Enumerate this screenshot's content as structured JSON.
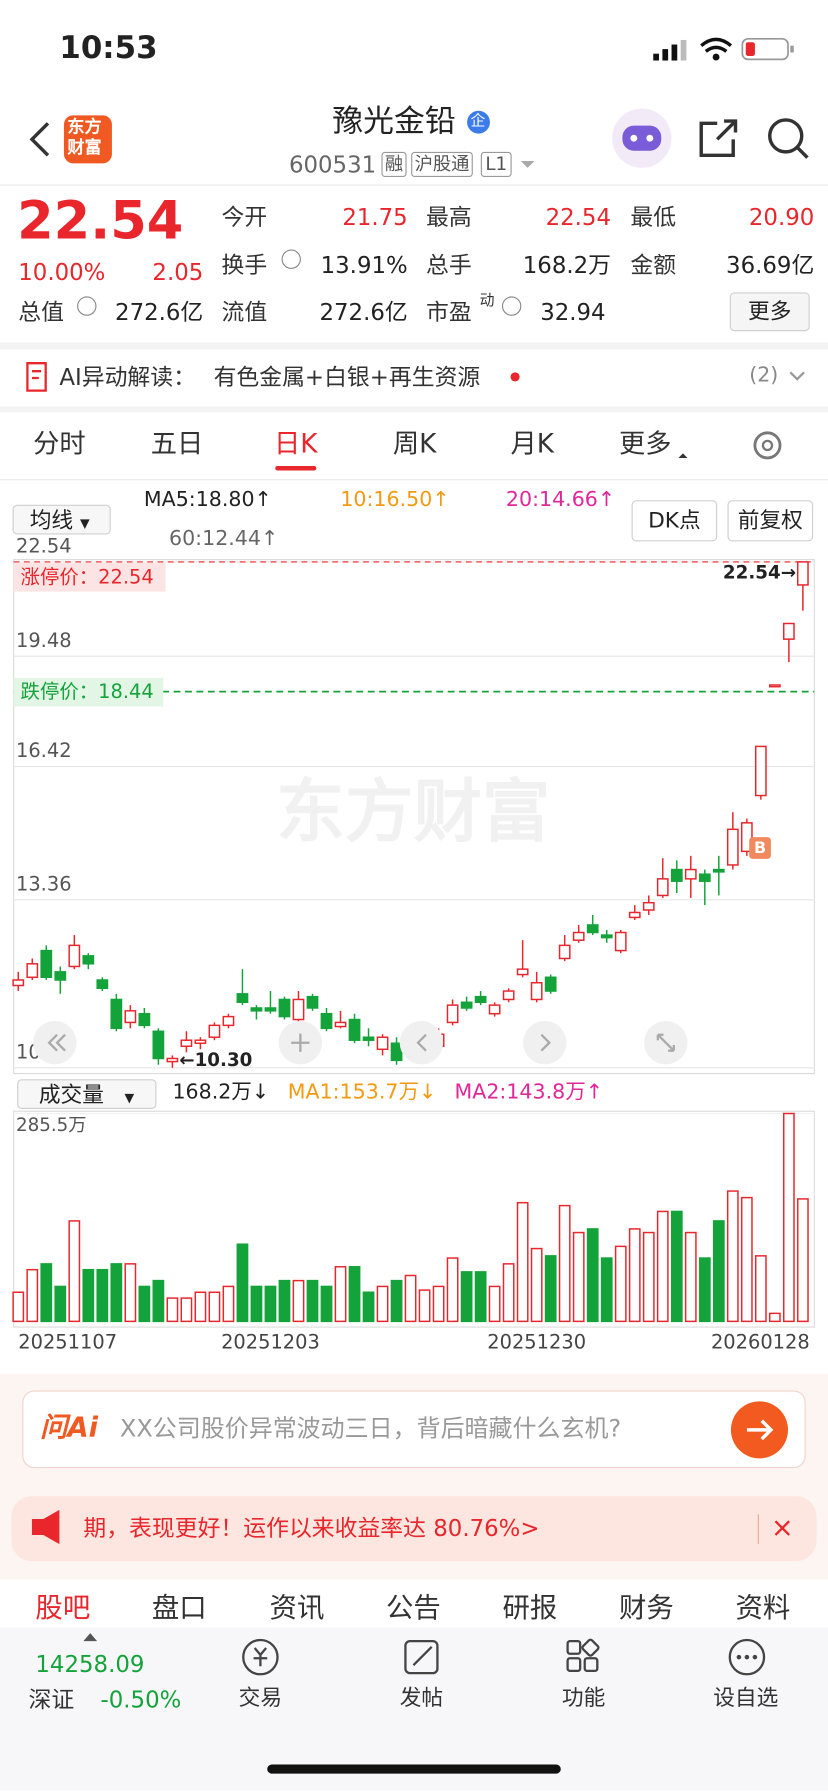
{
  "status_bar": {
    "time": "10:53"
  },
  "header": {
    "logo": [
      "东方",
      "财富"
    ],
    "title": "豫光金铅",
    "badge": "企",
    "code": "600531",
    "tags": [
      "融",
      "沪股通",
      "L1"
    ]
  },
  "quote": {
    "price": "22.54",
    "change_pct": "10.00%",
    "change": "2.05",
    "stats": [
      {
        "label": "今开",
        "value": "21.75"
      },
      {
        "label": "最高",
        "value": "22.54"
      },
      {
        "label": "最低",
        "value": "20.90"
      },
      {
        "label": "换手",
        "value": "13.91%"
      },
      {
        "label": "总手",
        "value": "168.2万"
      },
      {
        "label": "金额",
        "value": "36.69亿"
      },
      {
        "label": "总值",
        "value": "272.6亿"
      },
      {
        "label": "流值",
        "value": "272.6亿"
      },
      {
        "label": "市盈",
        "sup": "动",
        "value": "32.94"
      }
    ],
    "more": "更多"
  },
  "ai_alert": {
    "label": "AI异动解读：",
    "text": "有色金属+白银+再生资源",
    "count": "(2)"
  },
  "period_tabs": {
    "items": [
      "分时",
      "五日",
      "日K",
      "周K",
      "月K",
      "更多"
    ],
    "active": 2
  },
  "kline": {
    "indicator": "均线",
    "ma_labels": [
      "MA5:18.80↑",
      "10:16.50↑",
      "20:14.66↑",
      "60:12.44↑"
    ],
    "dk": "DK点",
    "adjust": "前复权",
    "log_scale": true,
    "ylim": [
      10.3,
      22.54
    ],
    "yticks": [
      22.54,
      19.48,
      16.42,
      13.36,
      {
        "value": 10.3,
        "label": "10.30"
      }
    ],
    "limit_up": {
      "label": "涨停价：22.54",
      "value": 22.54
    },
    "limit_down": {
      "label": "跌停价：18.44",
      "value": 18.44
    },
    "high_marker": "22.54→",
    "low_marker": "←10.30",
    "buy_marker": "B",
    "watermark": "东方财富",
    "candles": [
      {
        "open": 11.7,
        "high": 11.95,
        "low": 11.6,
        "close": 11.8
      },
      {
        "open": 11.85,
        "high": 12.2,
        "low": 11.8,
        "close": 12.1
      },
      {
        "open": 12.35,
        "high": 12.45,
        "low": 11.8,
        "close": 11.85
      },
      {
        "open": 11.95,
        "high": 12.05,
        "low": 11.55,
        "close": 11.8
      },
      {
        "open": 12.05,
        "high": 12.65,
        "low": 12.0,
        "close": 12.45
      },
      {
        "open": 12.25,
        "high": 12.3,
        "low": 12.0,
        "close": 12.1
      },
      {
        "open": 11.8,
        "high": 11.85,
        "low": 11.6,
        "close": 11.65
      },
      {
        "open": 11.45,
        "high": 11.55,
        "low": 10.9,
        "close": 10.95
      },
      {
        "open": 11.05,
        "high": 11.35,
        "low": 10.95,
        "close": 11.25
      },
      {
        "open": 11.2,
        "high": 11.3,
        "low": 10.95,
        "close": 11.0
      },
      {
        "open": 10.9,
        "high": 10.95,
        "low": 10.35,
        "close": 10.45
      },
      {
        "open": 10.4,
        "high": 10.5,
        "low": 10.3,
        "close": 10.45
      },
      {
        "open": 10.65,
        "high": 10.9,
        "low": 10.55,
        "close": 10.75
      },
      {
        "open": 10.7,
        "high": 10.8,
        "low": 10.6,
        "close": 10.75
      },
      {
        "open": 10.8,
        "high": 11.05,
        "low": 10.75,
        "close": 11.0
      },
      {
        "open": 11.0,
        "high": 11.2,
        "low": 10.95,
        "close": 11.15
      },
      {
        "open": 11.55,
        "high": 12.0,
        "low": 11.35,
        "close": 11.4
      },
      {
        "open": 11.3,
        "high": 11.35,
        "low": 11.1,
        "close": 11.25
      },
      {
        "open": 11.3,
        "high": 11.6,
        "low": 11.2,
        "close": 11.25
      },
      {
        "open": 11.45,
        "high": 11.5,
        "low": 11.1,
        "close": 11.15
      },
      {
        "open": 11.1,
        "high": 11.6,
        "low": 11.05,
        "close": 11.45
      },
      {
        "open": 11.5,
        "high": 11.55,
        "low": 11.25,
        "close": 11.3
      },
      {
        "open": 11.2,
        "high": 11.3,
        "low": 10.9,
        "close": 10.95
      },
      {
        "open": 10.98,
        "high": 11.25,
        "low": 10.95,
        "close": 11.05
      },
      {
        "open": 11.1,
        "high": 11.2,
        "low": 10.7,
        "close": 10.75
      },
      {
        "open": 10.8,
        "high": 10.95,
        "low": 10.65,
        "close": 10.75
      },
      {
        "open": 10.6,
        "high": 10.85,
        "low": 10.5,
        "close": 10.8
      },
      {
        "open": 10.7,
        "high": 10.8,
        "low": 10.35,
        "close": 10.42
      },
      {
        "open": 10.5,
        "high": 10.75,
        "low": 10.45,
        "close": 10.7
      },
      {
        "open": 10.65,
        "high": 10.8,
        "low": 10.6,
        "close": 10.7
      },
      {
        "open": 10.65,
        "high": 10.95,
        "low": 10.6,
        "close": 10.85
      },
      {
        "open": 11.05,
        "high": 11.45,
        "low": 11.0,
        "close": 11.35
      },
      {
        "open": 11.4,
        "high": 11.5,
        "low": 11.25,
        "close": 11.3
      },
      {
        "open": 11.5,
        "high": 11.6,
        "low": 11.35,
        "close": 11.4
      },
      {
        "open": 11.2,
        "high": 11.4,
        "low": 11.15,
        "close": 11.35
      },
      {
        "open": 11.45,
        "high": 11.65,
        "low": 11.4,
        "close": 11.6
      },
      {
        "open": 11.9,
        "high": 12.55,
        "low": 11.85,
        "close": 12.0
      },
      {
        "open": 11.45,
        "high": 11.95,
        "low": 11.4,
        "close": 11.75
      },
      {
        "open": 11.85,
        "high": 11.9,
        "low": 11.55,
        "close": 11.6
      },
      {
        "open": 12.2,
        "high": 12.65,
        "low": 12.15,
        "close": 12.45
      },
      {
        "open": 12.55,
        "high": 12.85,
        "low": 12.5,
        "close": 12.7
      },
      {
        "open": 12.85,
        "high": 13.05,
        "low": 12.65,
        "close": 12.7
      },
      {
        "open": 12.65,
        "high": 12.75,
        "low": 12.5,
        "close": 12.6
      },
      {
        "open": 12.35,
        "high": 12.75,
        "low": 12.3,
        "close": 12.7
      },
      {
        "open": 13.0,
        "high": 13.25,
        "low": 12.95,
        "close": 13.1
      },
      {
        "open": 13.15,
        "high": 13.45,
        "low": 13.05,
        "close": 13.3
      },
      {
        "open": 13.45,
        "high": 14.25,
        "low": 13.4,
        "close": 13.8
      },
      {
        "open": 14.0,
        "high": 14.2,
        "low": 13.5,
        "close": 13.75
      },
      {
        "open": 13.8,
        "high": 14.3,
        "low": 13.4,
        "close": 14.0
      },
      {
        "open": 13.9,
        "high": 14.0,
        "low": 13.25,
        "close": 13.75
      },
      {
        "open": 14.0,
        "high": 14.3,
        "low": 13.45,
        "close": 13.95
      },
      {
        "open": 14.1,
        "high": 15.3,
        "low": 14.0,
        "close": 14.9
      },
      {
        "open": 14.4,
        "high": 15.15,
        "low": 14.3,
        "close": 15.05
      },
      {
        "open": 15.7,
        "high": 16.94,
        "low": 15.6,
        "close": 16.94
      },
      {
        "open": 18.63,
        "high": 18.63,
        "low": 18.63,
        "close": 18.63
      },
      {
        "open": 20.0,
        "high": 20.49,
        "low": 19.3,
        "close": 20.49
      },
      {
        "open": 21.75,
        "high": 22.54,
        "low": 20.9,
        "close": 22.54
      }
    ]
  },
  "volume": {
    "indicator": "成交量",
    "current": "168.2万↓",
    "ma1": "MA1:153.7万↓",
    "ma2": "MA2:143.8万↑",
    "ylim": [
      0,
      285.5
    ],
    "yticks": [
      {
        "value": 285.5,
        "label": "285.5万"
      }
    ],
    "values": [
      40,
      71,
      79,
      48,
      138,
      71,
      71,
      79,
      79,
      48,
      56,
      32,
      32,
      40,
      40,
      48,
      106,
      48,
      48,
      56,
      56,
      56,
      48,
      75,
      75,
      40,
      48,
      56,
      63,
      43,
      48,
      87,
      68,
      68,
      48,
      79,
      163,
      100,
      90,
      159,
      122,
      127,
      87,
      103,
      127,
      122,
      151,
      151,
      122,
      87,
      138,
      179,
      170,
      90,
      11,
      285.5,
      168.2
    ],
    "categories": [
      "20251107",
      null,
      null,
      null,
      null,
      null,
      null,
      null,
      null,
      null,
      null,
      null,
      null,
      null,
      null,
      null,
      null,
      null,
      "20251203",
      null,
      null,
      null,
      null,
      null,
      null,
      null,
      null,
      null,
      null,
      null,
      null,
      null,
      null,
      null,
      null,
      null,
      null,
      "20251230",
      null,
      null,
      null,
      null,
      null,
      null,
      null,
      null,
      null,
      null,
      null,
      null,
      null,
      null,
      null,
      null,
      null,
      null,
      "20260128"
    ]
  },
  "ask_ai": {
    "brand": "问Ai",
    "placeholder": "XX公司股价异常波动三日，背后暗藏什么玄机?"
  },
  "banner": {
    "text": "期，表现更好！运作以来收益率达 80.76%>"
  },
  "bottom_tabs": {
    "items": [
      "股吧",
      "盘口",
      "资讯",
      "公告",
      "研报",
      "财务",
      "资料"
    ],
    "active": 0
  },
  "footer": {
    "index_value": "14258.09",
    "index_name": "深证",
    "index_change": "-0.50%",
    "nav": [
      "交易",
      "发帖",
      "功能",
      "设自选"
    ]
  }
}
